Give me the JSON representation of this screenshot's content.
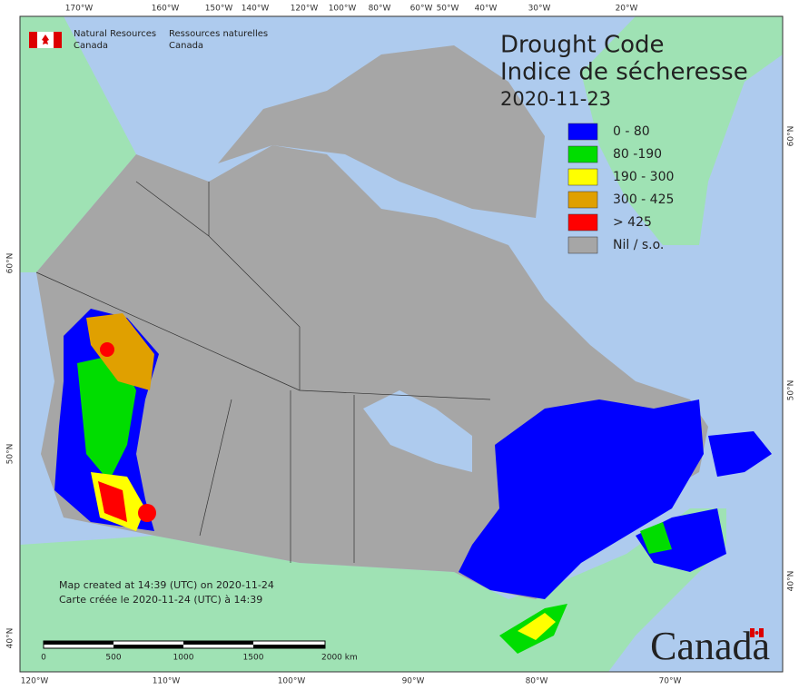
{
  "header": {
    "agency_en": [
      "Natural Resources",
      "Canada"
    ],
    "agency_fr": [
      "Ressources naturelles",
      "Canada"
    ]
  },
  "title": [
    "Drought Code",
    "Indice de sécheresse"
  ],
  "date": "2020-11-23",
  "legend": [
    {
      "label": "0 - 80",
      "color": "#0000ff"
    },
    {
      "label": "80 -190",
      "color": "#00dd00"
    },
    {
      "label": "190 - 300",
      "color": "#ffff00"
    },
    {
      "label": "300 - 425",
      "color": "#e0a000"
    },
    {
      "label": "> 425",
      "color": "#ff0000"
    },
    {
      "label": "Nil / s.o.",
      "color": "#a6a6a6"
    }
  ],
  "top_longitudes": [
    "170°W",
    "160°W",
    "150°W",
    "140°W",
    "120°W",
    "100°W",
    "80°W",
    "60°W",
    "50°W",
    "40°W",
    "30°W",
    "20°W"
  ],
  "bottom_longitudes": [
    "120°W",
    "110°W",
    "100°W",
    "90°W",
    "80°W",
    "70°W"
  ],
  "left_latitudes": [
    "60°N",
    "50°N",
    "40°N"
  ],
  "right_latitudes": [
    "60°N",
    "50°N",
    "40°N"
  ],
  "notes": [
    "Map created at 14:39 (UTC) on 2020-11-24",
    "Carte créée le 2020-11-24 (UTC) à 14:39"
  ],
  "scale_labels": [
    "0",
    "500",
    "1000",
    "1500",
    "2000 km"
  ],
  "wordmark": "Canada"
}
